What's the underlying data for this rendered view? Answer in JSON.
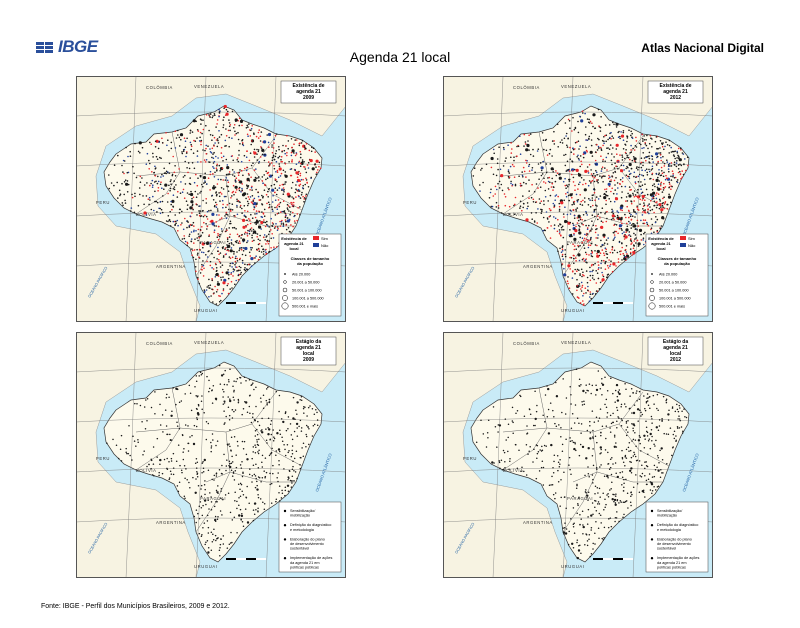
{
  "header": {
    "logo_text": "IBGE",
    "page_title": "Agenda 21 local",
    "atlas_title": "Atlas Nacional Digital"
  },
  "maps": [
    {
      "title_lines": [
        "Existência de",
        "agenda 21",
        "2009"
      ],
      "variant": "existence",
      "legend_category_title": [
        "Existência de",
        "agenda 21",
        "local"
      ],
      "legend_categories": [
        {
          "label": "Sim",
          "color": "#e8262a"
        },
        {
          "label": "Não",
          "color": "#1f3f99"
        }
      ],
      "legend_size_title": [
        "Classes de tamanho",
        "da população"
      ],
      "legend_sizes": [
        "Até 20.000",
        "20.001 a 50.000",
        "50.001 a 100.000",
        "100.001 a 500.000",
        "500.001 e mais"
      ]
    },
    {
      "title_lines": [
        "Existência de",
        "agenda 21",
        "2012"
      ],
      "variant": "existence",
      "legend_category_title": [
        "Existência de",
        "agenda 21",
        "local"
      ],
      "legend_categories": [
        {
          "label": "Sim",
          "color": "#e8262a"
        },
        {
          "label": "Não",
          "color": "#1f3f99"
        }
      ],
      "legend_size_title": [
        "Classes de tamanho",
        "da população"
      ],
      "legend_sizes": [
        "Até 20.000",
        "20.001 a 50.000",
        "50.001 a 100.000",
        "100.001 a 500.000",
        "500.001 e mais"
      ]
    },
    {
      "title_lines": [
        "Estágio da",
        "agenda 21",
        "local",
        "2009"
      ],
      "variant": "stage",
      "legend_stages": [
        [
          "Sensibilização/",
          "mobilização"
        ],
        [
          "Definição do diagnóstico",
          "e metodologia"
        ],
        [
          "Elaboração do plano",
          "de desenvolvimento",
          "sustentável"
        ],
        [
          "Implementação de ações",
          "da agenda 21 em",
          "políticas públicas"
        ]
      ]
    },
    {
      "title_lines": [
        "Estágio da",
        "agenda 21",
        "local",
        "2012"
      ],
      "variant": "stage",
      "legend_stages": [
        [
          "Sensibilização/",
          "mobilização"
        ],
        [
          "Definição do diagnóstico",
          "e metodologia"
        ],
        [
          "Elaboração do plano",
          "de desenvolvimento",
          "sustentável"
        ],
        [
          "Implementação de ações",
          "da agenda 21 em",
          "políticas públicas"
        ]
      ]
    }
  ],
  "map_labels": {
    "countries": [
      "COLÔMBIA",
      "VENEZUELA",
      "PERU",
      "BOLÍVIA",
      "PARAGUAI",
      "ARGENTINA",
      "URUGUAI"
    ],
    "oceans": [
      "OCEANO PACÍFICO",
      "OCEANO ATLÂNTICO"
    ]
  },
  "colors": {
    "ocean": "#c9ebf7",
    "land_brazil": "#fdfaec",
    "land_other": "#f7f3e2",
    "frame": "#555555",
    "sim": "#e8262a",
    "nao": "#1f3f99",
    "dot": "#1a1a1a"
  },
  "footer": {
    "source": "Fonte: IBGE - Perfil dos Municípios Brasileiros, 2009 e 2012."
  }
}
